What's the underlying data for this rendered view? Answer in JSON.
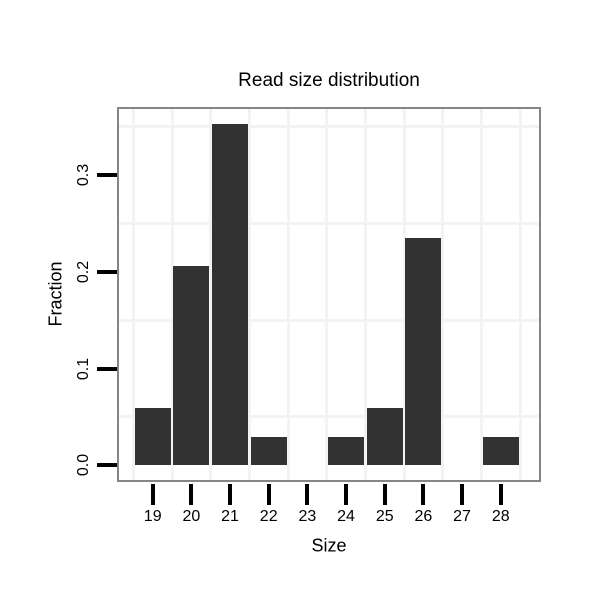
{
  "title": "Read size distribution",
  "colors": {
    "bar": "#323232",
    "panel_border": "#858585",
    "gridline": "#f3f3f3",
    "tick": "#000000",
    "text": "#000000",
    "background": "#ffffff"
  },
  "chart_data": {
    "type": "bar",
    "title": "Read size distribution",
    "xlabel": "Size",
    "ylabel": "Fraction",
    "categories": [
      "19",
      "20",
      "21",
      "22",
      "23",
      "24",
      "25",
      "26",
      "27",
      "28"
    ],
    "values": [
      0.0588,
      0.2059,
      0.3529,
      0.0294,
      0,
      0.0294,
      0.0588,
      0.2353,
      0,
      0.0294
    ],
    "y_ticks": [
      {
        "value": 0.0,
        "label": "0.0"
      },
      {
        "value": 0.1,
        "label": "0.1"
      },
      {
        "value": 0.2,
        "label": "0.2"
      },
      {
        "value": 0.3,
        "label": "0.3"
      }
    ],
    "minor_gridlines_y": [
      0.05,
      0.15,
      0.25,
      0.35
    ],
    "ylim": [
      -0.017,
      0.371
    ],
    "grid": "minor-only",
    "legend": "none",
    "bar_color": "#323232"
  }
}
